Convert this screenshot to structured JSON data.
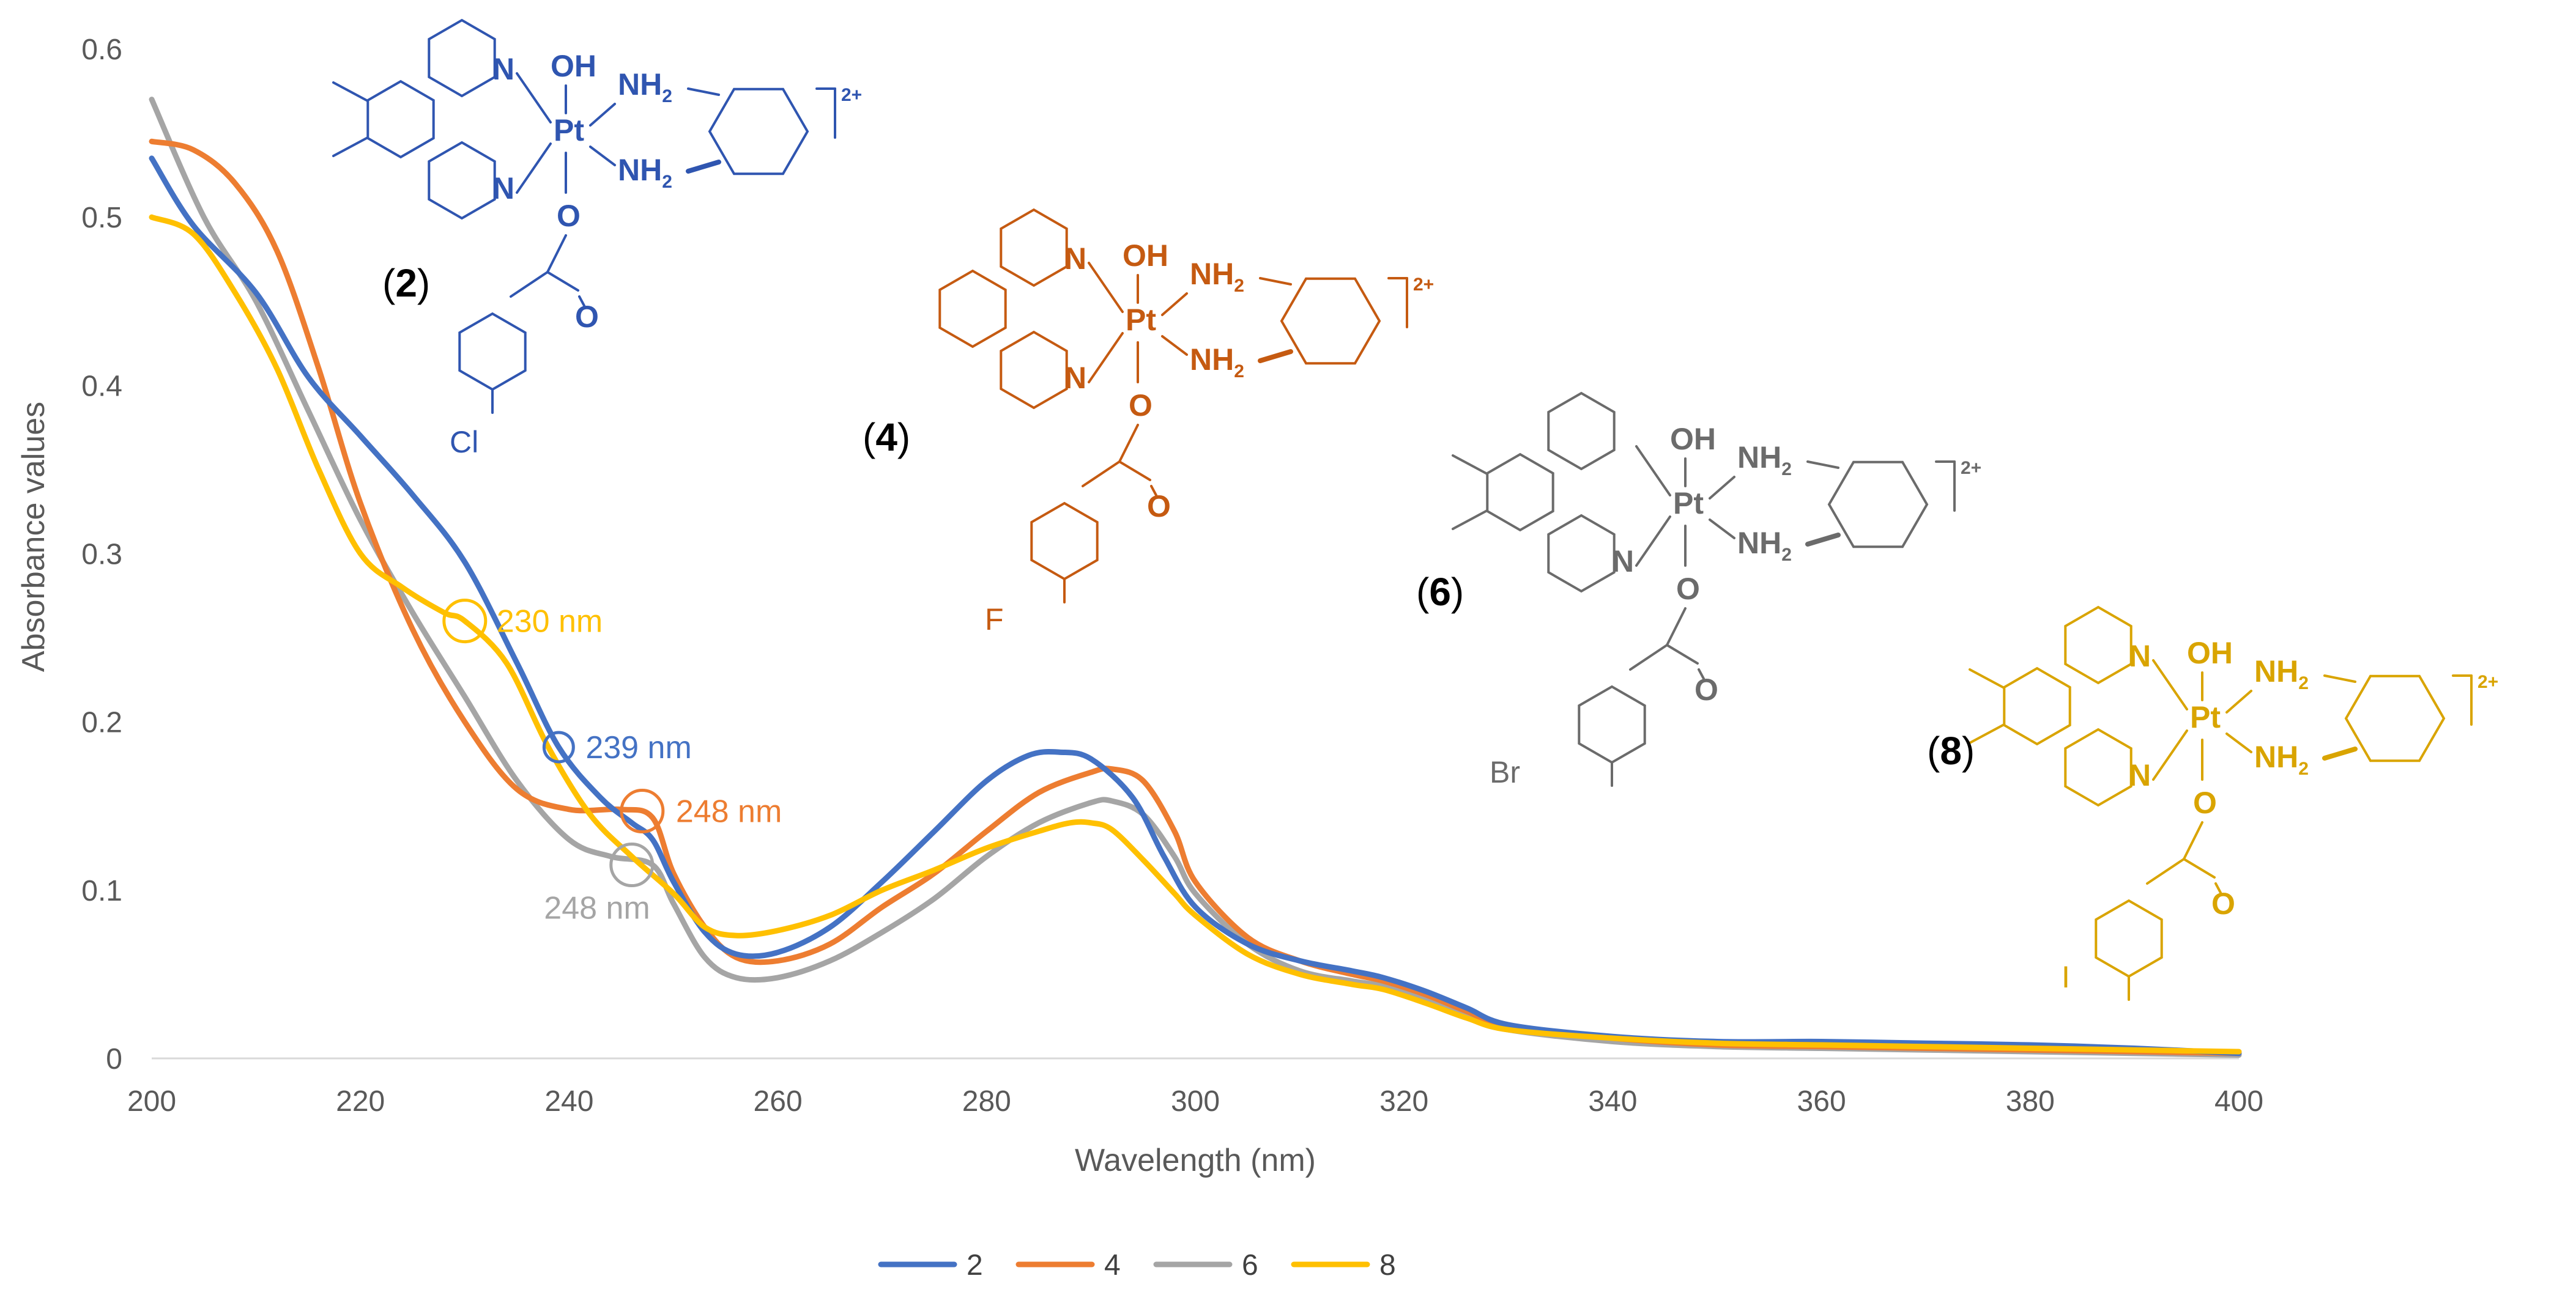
{
  "chart_data": {
    "type": "line",
    "title": "",
    "xlabel": "Wavelength (nm)",
    "ylabel": "Absorbance values",
    "xlim": [
      200,
      400
    ],
    "ylim": [
      0,
      0.6
    ],
    "x_ticks": [
      "200",
      "220",
      "240",
      "260",
      "280",
      "300",
      "320",
      "340",
      "360",
      "380",
      "400"
    ],
    "y_ticks": [
      "0",
      "0.1",
      "0.2",
      "0.3",
      "0.4",
      "0.5",
      "0.6"
    ],
    "grid": false,
    "legend_position": "bottom",
    "series": [
      {
        "name": "2",
        "color": "#4472C4",
        "x": [
          200,
          204,
          210,
          215,
          220,
          225,
          230,
          235,
          239,
          243,
          246,
          248,
          250,
          253,
          256,
          260,
          265,
          270,
          275,
          280,
          284,
          287,
          290,
          294,
          297,
          300,
          305,
          310,
          315,
          318,
          322,
          326,
          330,
          340,
          350,
          360,
          370,
          380,
          390,
          400
        ],
        "y": [
          0.535,
          0.495,
          0.455,
          0.405,
          0.37,
          0.335,
          0.295,
          0.235,
          0.185,
          0.155,
          0.14,
          0.13,
          0.105,
          0.075,
          0.062,
          0.063,
          0.078,
          0.105,
          0.135,
          0.165,
          0.18,
          0.182,
          0.178,
          0.155,
          0.12,
          0.09,
          0.068,
          0.058,
          0.052,
          0.048,
          0.04,
          0.03,
          0.02,
          0.013,
          0.01,
          0.01,
          0.009,
          0.008,
          0.006,
          0.003
        ]
      },
      {
        "name": "4",
        "color": "#ED7D31",
        "x": [
          200,
          204,
          208,
          212,
          216,
          220,
          225,
          230,
          235,
          240,
          245,
          248,
          250,
          253,
          256,
          260,
          265,
          270,
          275,
          280,
          285,
          290,
          292,
          295,
          298,
          300,
          305,
          310,
          315,
          318,
          322,
          326,
          330,
          340,
          350,
          360,
          370,
          380,
          390,
          400
        ],
        "y": [
          0.545,
          0.54,
          0.52,
          0.48,
          0.41,
          0.33,
          0.255,
          0.2,
          0.16,
          0.148,
          0.148,
          0.143,
          0.11,
          0.078,
          0.06,
          0.058,
          0.068,
          0.09,
          0.11,
          0.135,
          0.158,
          0.17,
          0.172,
          0.165,
          0.135,
          0.105,
          0.072,
          0.058,
          0.05,
          0.046,
          0.038,
          0.028,
          0.019,
          0.012,
          0.008,
          0.007,
          0.006,
          0.005,
          0.004,
          0.003
        ]
      },
      {
        "name": "6",
        "color": "#A5A5A5",
        "x": [
          200,
          205,
          210,
          215,
          220,
          225,
          230,
          235,
          240,
          244,
          248,
          250,
          253,
          256,
          260,
          265,
          270,
          275,
          280,
          285,
          290,
          292,
          295,
          298,
          300,
          305,
          310,
          315,
          318,
          322,
          326,
          330,
          340,
          350,
          360,
          370,
          380,
          390,
          400
        ],
        "y": [
          0.57,
          0.5,
          0.45,
          0.385,
          0.32,
          0.265,
          0.215,
          0.165,
          0.13,
          0.12,
          0.115,
          0.092,
          0.06,
          0.048,
          0.048,
          0.058,
          0.075,
          0.095,
          0.12,
          0.14,
          0.152,
          0.153,
          0.145,
          0.12,
          0.098,
          0.068,
          0.052,
          0.046,
          0.043,
          0.035,
          0.025,
          0.017,
          0.01,
          0.007,
          0.006,
          0.005,
          0.004,
          0.003,
          0.002
        ]
      },
      {
        "name": "8",
        "color": "#FFC000",
        "x": [
          200,
          204,
          208,
          212,
          216,
          220,
          224,
          228,
          230,
          234,
          238,
          242,
          246,
          250,
          253,
          256,
          260,
          265,
          270,
          275,
          280,
          285,
          288,
          290,
          292,
          295,
          298,
          300,
          305,
          310,
          315,
          318,
          322,
          326,
          330,
          340,
          350,
          360,
          370,
          380,
          390,
          400
        ],
        "y": [
          0.5,
          0.49,
          0.455,
          0.41,
          0.35,
          0.3,
          0.28,
          0.265,
          0.26,
          0.235,
          0.185,
          0.145,
          0.12,
          0.098,
          0.078,
          0.073,
          0.076,
          0.085,
          0.1,
          0.112,
          0.125,
          0.135,
          0.14,
          0.14,
          0.136,
          0.118,
          0.098,
          0.085,
          0.062,
          0.05,
          0.044,
          0.041,
          0.033,
          0.024,
          0.017,
          0.012,
          0.009,
          0.008,
          0.007,
          0.006,
          0.005,
          0.004
        ]
      }
    ],
    "annotations": [
      {
        "text": "230 nm",
        "series": "8",
        "x": 230,
        "y": 0.26
      },
      {
        "text": "239 nm",
        "series": "2",
        "x": 239,
        "y": 0.185
      },
      {
        "text": "248 nm",
        "series": "4",
        "x": 247,
        "y": 0.147
      },
      {
        "text": "248 nm",
        "series": "6",
        "x": 246,
        "y": 0.115
      }
    ]
  },
  "structures": [
    {
      "label_open": "(",
      "label_num": "2",
      "label_close": ")",
      "color": "#2F55B0",
      "halogen": "Cl",
      "charge": "2+",
      "atoms": {
        "n": "N",
        "oh": "OH",
        "pt": "Pt",
        "nh2": "NH",
        "h_sub": "2",
        "o": "O"
      }
    },
    {
      "label_open": "(",
      "label_num": "4",
      "label_close": ")",
      "color": "#C55A11",
      "halogen": "F",
      "charge": "2+",
      "atoms": {
        "n": "N",
        "oh": "OH",
        "pt": "Pt",
        "nh2": "NH",
        "h_sub": "2",
        "o": "O"
      }
    },
    {
      "label_open": "(",
      "label_num": "6",
      "label_close": ")",
      "color": "#6B6B6B",
      "halogen": "Br",
      "charge": "2+",
      "atoms": {
        "n": "N",
        "oh": "OH",
        "pt": "Pt",
        "nh2": "NH",
        "h_sub": "2",
        "o": "O"
      }
    },
    {
      "label_open": "(",
      "label_num": "8",
      "label_close": ")",
      "color": "#D9A400",
      "halogen": "I",
      "charge": "2+",
      "atoms": {
        "n": "N",
        "oh": "OH",
        "pt": "Pt",
        "nh2": "NH",
        "h_sub": "2",
        "o": "O"
      }
    }
  ]
}
